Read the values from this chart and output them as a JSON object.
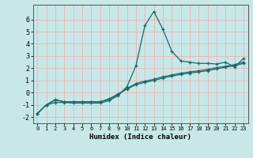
{
  "xlabel": "Humidex (Indice chaleur)",
  "background_color": "#c8e8e8",
  "grid_color": "#e8b8b8",
  "line_color": "#1a6868",
  "xlim": [
    -0.5,
    23.5
  ],
  "ylim": [
    -2.5,
    7.2
  ],
  "yticks": [
    -2,
    -1,
    0,
    1,
    2,
    3,
    4,
    5,
    6
  ],
  "xticks": [
    0,
    1,
    2,
    3,
    4,
    5,
    6,
    7,
    8,
    9,
    10,
    11,
    12,
    13,
    14,
    15,
    16,
    17,
    18,
    19,
    20,
    21,
    22,
    23
  ],
  "curve1_x": [
    0,
    1,
    2,
    3,
    4,
    5,
    6,
    7,
    8,
    9,
    10,
    11,
    12,
    13,
    14,
    15,
    16,
    17,
    18,
    19,
    20,
    21,
    22,
    23
  ],
  "curve1_y": [
    -1.7,
    -1.0,
    -0.8,
    -0.8,
    -0.85,
    -0.85,
    -0.85,
    -0.85,
    -0.65,
    -0.25,
    0.5,
    2.2,
    5.5,
    6.65,
    5.2,
    3.4,
    2.6,
    2.5,
    2.4,
    2.4,
    2.35,
    2.5,
    2.1,
    2.8
  ],
  "curve2_x": [
    0,
    1,
    2,
    3,
    4,
    5,
    6,
    7,
    8,
    9,
    10,
    11,
    12,
    13,
    14,
    15,
    16,
    17,
    18,
    19,
    20,
    21,
    22,
    23
  ],
  "curve2_y": [
    -1.7,
    -1.0,
    -0.6,
    -0.75,
    -0.75,
    -0.75,
    -0.75,
    -0.75,
    -0.55,
    -0.15,
    0.35,
    0.75,
    0.95,
    1.1,
    1.3,
    1.45,
    1.6,
    1.7,
    1.8,
    1.9,
    2.05,
    2.15,
    2.3,
    2.5
  ],
  "curve3_x": [
    0,
    1,
    2,
    3,
    4,
    5,
    6,
    7,
    8,
    9,
    10,
    11,
    12,
    13,
    14,
    15,
    16,
    17,
    18,
    19,
    20,
    21,
    22,
    23
  ],
  "curve3_y": [
    -1.7,
    -1.0,
    -0.55,
    -0.75,
    -0.75,
    -0.75,
    -0.75,
    -0.75,
    -0.5,
    -0.1,
    0.3,
    0.65,
    0.85,
    1.0,
    1.2,
    1.35,
    1.5,
    1.6,
    1.7,
    1.8,
    1.95,
    2.1,
    2.2,
    2.4
  ]
}
